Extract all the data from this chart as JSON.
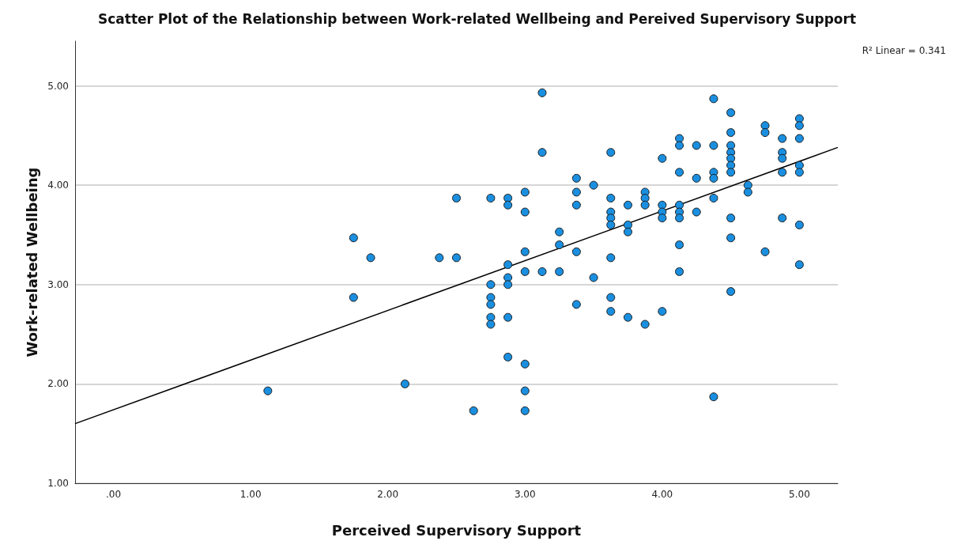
{
  "chart_data": {
    "type": "scatter",
    "title": "Scatter Plot of the Relationship between Work-related Wellbeing and Pereived Supervisory Support",
    "xlabel": "Perceived Supervisory Support",
    "ylabel": "Work-related Wellbeing",
    "annotations": [
      "R² Linear = 0.341"
    ],
    "xlim": [
      -0.28,
      5.28
    ],
    "ylim": [
      1,
      5.45
    ],
    "xticks": [
      {
        "value": 0,
        "label": ".00"
      },
      {
        "value": 1,
        "label": "1.00"
      },
      {
        "value": 2,
        "label": "2.00"
      },
      {
        "value": 3,
        "label": "3.00"
      },
      {
        "value": 4,
        "label": "4.00"
      },
      {
        "value": 5,
        "label": "5.00"
      }
    ],
    "yticks": [
      {
        "value": 1,
        "label": "1.00"
      },
      {
        "value": 2,
        "label": "2.00"
      },
      {
        "value": 3,
        "label": "3.00"
      },
      {
        "value": 4,
        "label": "4.00"
      },
      {
        "value": 5,
        "label": "5.00"
      }
    ],
    "grid": "y",
    "series": [
      {
        "type": "scatter",
        "color": "#1a8fe0",
        "marker": "circle",
        "x": [
          1.125,
          1.75,
          1.75,
          1.875,
          2.125,
          2.375,
          2.5,
          2.5,
          2.625,
          2.75,
          2.75,
          2.75,
          2.75,
          2.75,
          2.75,
          2.875,
          2.875,
          2.875,
          2.875,
          2.875,
          2.875,
          2.875,
          3,
          3,
          3,
          3,
          3,
          3,
          3,
          3.125,
          3.125,
          3.125,
          3.25,
          3.25,
          3.25,
          3.375,
          3.375,
          3.375,
          3.375,
          3.375,
          3.5,
          3.5,
          3.625,
          3.625,
          3.625,
          3.625,
          3.625,
          3.625,
          3.625,
          3.625,
          3.75,
          3.75,
          3.75,
          3.75,
          3.875,
          3.875,
          3.875,
          3.875,
          4,
          4,
          4,
          4,
          4,
          4.125,
          4.125,
          4.125,
          4.125,
          4.125,
          4.125,
          4.125,
          4.125,
          4.25,
          4.25,
          4.25,
          4.375,
          4.375,
          4.375,
          4.375,
          4.375,
          4.375,
          4.5,
          4.5,
          4.5,
          4.5,
          4.5,
          4.5,
          4.5,
          4.5,
          4.5,
          4.5,
          4.625,
          4.625,
          4.75,
          4.75,
          4.75,
          4.875,
          4.875,
          4.875,
          4.875,
          4.875,
          5,
          5,
          5,
          5,
          5,
          5,
          5
        ],
        "values": [
          1.93,
          3.47,
          2.87,
          3.27,
          2.0,
          3.27,
          3.87,
          3.27,
          1.73,
          3.87,
          3.0,
          2.87,
          2.8,
          2.67,
          2.6,
          3.87,
          3.8,
          3.2,
          3.07,
          3.0,
          2.67,
          2.27,
          3.93,
          3.73,
          3.33,
          3.13,
          2.2,
          1.93,
          1.73,
          4.93,
          4.33,
          3.13,
          3.53,
          3.4,
          3.13,
          4.07,
          3.93,
          3.8,
          3.33,
          2.8,
          4.0,
          3.07,
          4.33,
          3.87,
          3.73,
          3.67,
          3.6,
          3.27,
          2.87,
          2.73,
          3.8,
          3.6,
          3.53,
          2.67,
          3.93,
          3.87,
          3.8,
          2.6,
          4.27,
          3.8,
          3.73,
          3.67,
          2.73,
          4.47,
          4.4,
          4.13,
          3.8,
          3.73,
          3.67,
          3.4,
          3.13,
          4.4,
          4.07,
          3.73,
          4.87,
          4.4,
          4.13,
          4.07,
          3.87,
          1.87,
          4.73,
          4.53,
          4.4,
          4.33,
          4.27,
          4.2,
          4.13,
          3.67,
          3.47,
          2.93,
          4.0,
          3.93,
          4.6,
          4.53,
          3.33,
          4.47,
          4.33,
          4.27,
          4.13,
          3.67,
          4.67,
          4.6,
          4.47,
          4.2,
          4.13,
          3.6,
          3.2
        ]
      },
      {
        "type": "line",
        "color": "#000000",
        "marker": "none",
        "line_style": "solid",
        "x": [
          -0.28,
          5.28
        ],
        "values": [
          1.6,
          4.38
        ]
      }
    ]
  }
}
